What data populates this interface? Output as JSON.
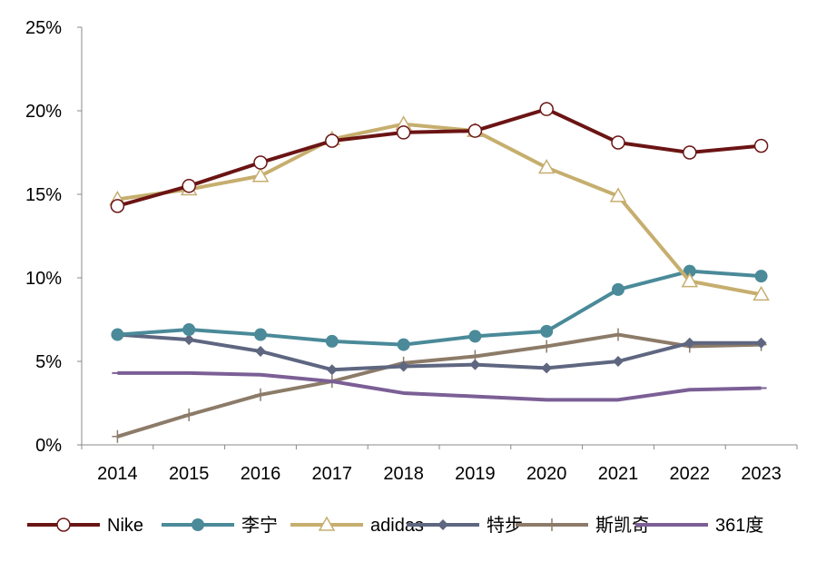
{
  "chart_data": {
    "type": "line",
    "title": "",
    "xlabel": "",
    "ylabel": "",
    "categories": [
      "2014",
      "2015",
      "2016",
      "2017",
      "2018",
      "2019",
      "2020",
      "2021",
      "2022",
      "2023"
    ],
    "ylim": [
      0,
      25
    ],
    "y_ticks": [
      "0%",
      "5%",
      "10%",
      "15%",
      "20%",
      "25%"
    ],
    "y_tick_values": [
      0,
      5,
      10,
      15,
      20,
      25
    ],
    "grid": false,
    "legend_position": "bottom",
    "series": [
      {
        "name": "Nike",
        "color": "#6B1414",
        "marker": "circle-open",
        "values": [
          14.3,
          15.5,
          16.9,
          18.2,
          18.7,
          18.8,
          20.1,
          18.1,
          17.5,
          17.9
        ]
      },
      {
        "name": "李宁",
        "color": "#4A8A99",
        "marker": "circle",
        "values": [
          6.6,
          6.9,
          6.6,
          6.2,
          6.0,
          6.5,
          6.8,
          9.3,
          10.4,
          10.1
        ]
      },
      {
        "name": "adidas",
        "color": "#C6AE6E",
        "marker": "triangle-open",
        "values": [
          14.7,
          15.3,
          16.1,
          18.3,
          19.2,
          18.8,
          16.6,
          14.9,
          9.8,
          9.0
        ]
      },
      {
        "name": "特步",
        "color": "#5E6680",
        "marker": "diamond",
        "values": [
          6.6,
          6.3,
          5.6,
          4.5,
          4.7,
          4.8,
          4.6,
          5.0,
          6.1,
          6.1
        ]
      },
      {
        "name": "斯凯奇",
        "color": "#8C7B68",
        "marker": "plus",
        "values": [
          0.5,
          1.8,
          3.0,
          3.8,
          4.9,
          5.3,
          5.9,
          6.6,
          5.9,
          6.0
        ]
      },
      {
        "name": "361度",
        "color": "#7B5F95",
        "marker": "dash",
        "values": [
          4.3,
          4.3,
          4.2,
          3.8,
          3.1,
          2.9,
          2.7,
          2.7,
          3.3,
          3.4
        ]
      }
    ]
  }
}
